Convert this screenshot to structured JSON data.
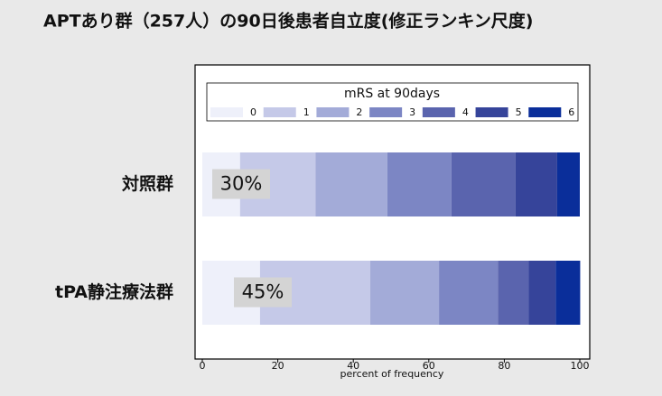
{
  "chart_data": {
    "type": "bar",
    "orientation": "horizontal",
    "stacked": true,
    "title": "APTあり群（257人）の90日後患者自立度(修正ランキン尺度)",
    "legend_title": "mRS at 90days",
    "xlabel": "percent of frequency",
    "categories": [
      "対照群",
      "tPA静注療法群"
    ],
    "series": [
      {
        "name": "0",
        "color": "#eef0fa",
        "values": [
          10,
          15.3
        ]
      },
      {
        "name": "1",
        "color": "#c5c9e8",
        "values": [
          20,
          29.2
        ]
      },
      {
        "name": "2",
        "color": "#a3abd8",
        "values": [
          19,
          18.2
        ]
      },
      {
        "name": "3",
        "color": "#7c86c4",
        "values": [
          17,
          15.6
        ]
      },
      {
        "name": "4",
        "color": "#5a64ae",
        "values": [
          17,
          8.1
        ]
      },
      {
        "name": "5",
        "color": "#36449a",
        "values": [
          11,
          7.2
        ]
      },
      {
        "name": "6",
        "color": "#0a2e9a",
        "values": [
          6,
          6.5
        ]
      }
    ],
    "annotations": [
      "30%",
      "45%"
    ],
    "xlim": [
      0,
      100
    ],
    "xticks": [
      0,
      20,
      40,
      60,
      80,
      100
    ]
  }
}
